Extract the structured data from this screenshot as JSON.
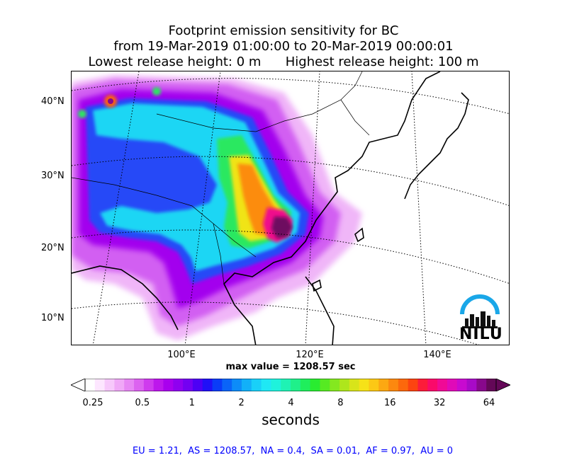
{
  "title": {
    "line1": "Footprint emission sensitivity for BC",
    "line2": "from 19-Mar-2019 01:00:00 to 20-Mar-2019 00:00:01",
    "line3": "Lowest release height: 0 m      Highest release height: 100 m"
  },
  "axes": {
    "lat_labels": [
      "40°N",
      "30°N",
      "20°N",
      "10°N"
    ],
    "lon_labels": [
      "100°E",
      "120°E",
      "140°E"
    ]
  },
  "max_value": "max value = 1208.57 sec",
  "colorbar": {
    "ticks": [
      "0.25",
      "0.5",
      "1",
      "2",
      "4",
      "8",
      "16",
      "32",
      "64"
    ],
    "unit": "seconds",
    "colors": [
      "#ffffff",
      "#fde6ff",
      "#f7c8fb",
      "#f0a8f7",
      "#e787f4",
      "#dc62f0",
      "#cf3bee",
      "#bd17ec",
      "#a900ee",
      "#8f00f0",
      "#7300f2",
      "#4d00f5",
      "#2010f7",
      "#0a3cf8",
      "#0a64f8",
      "#0d8cf8",
      "#12b0f8",
      "#19d0f8",
      "#1fe8f4",
      "#1ff2dc",
      "#1ff2b4",
      "#1ff08a",
      "#1fee5c",
      "#29ec30",
      "#56ea22",
      "#84e81f",
      "#aee61c",
      "#d8e41a",
      "#f6e218",
      "#fcc815",
      "#fca812",
      "#fc880f",
      "#fc680c",
      "#fc4410",
      "#fc1c3a",
      "#fa0a6a",
      "#f00a96",
      "#e00ab8",
      "#c80ad0",
      "#a80ac8",
      "#88088c",
      "#640858"
    ]
  },
  "regions_text": "EU = 1.21,  AS = 1208.57,  NA = 0.4,  SA = 0.01,  AF = 0.97,  AU = 0",
  "logo_text": "NILU"
}
